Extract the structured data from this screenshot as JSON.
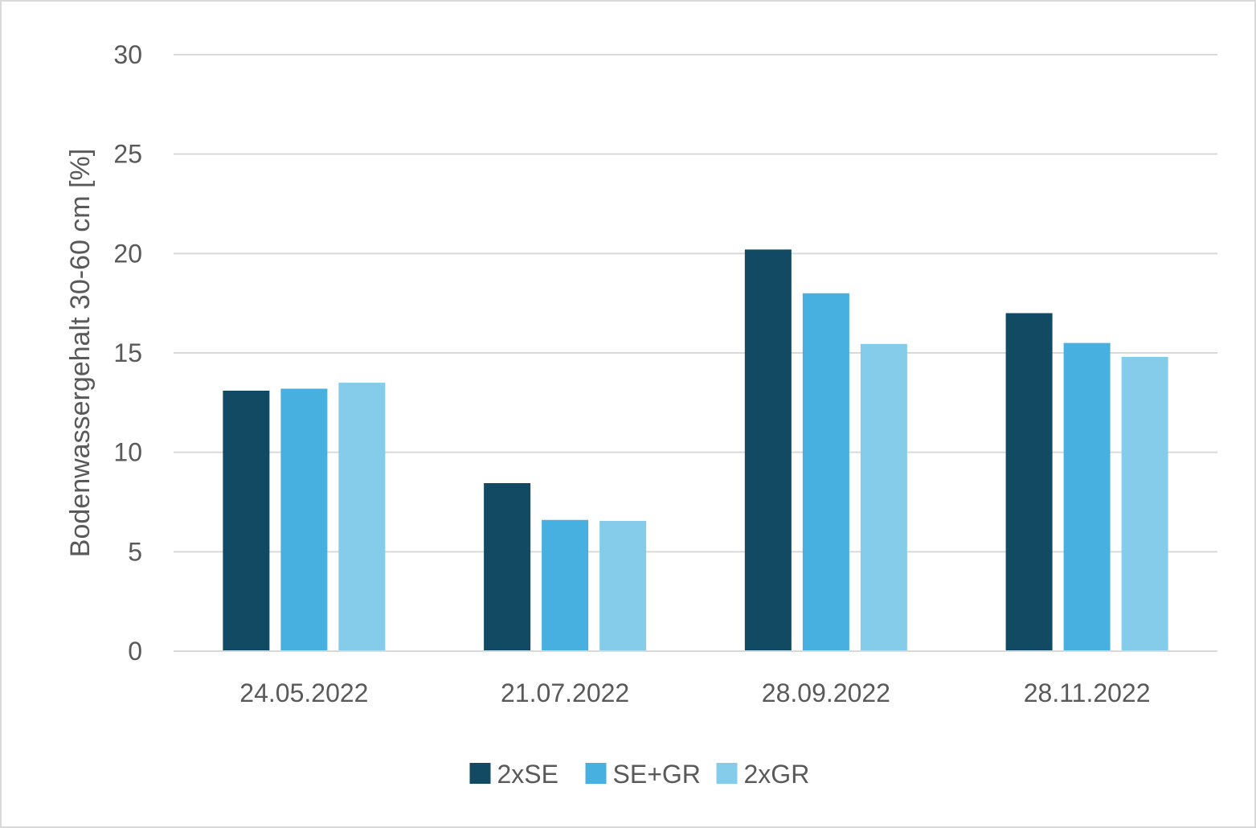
{
  "chart_data": {
    "type": "bar",
    "title": "",
    "xlabel": "",
    "ylabel": "Bodenwassergehalt 30-60 cm [%]",
    "ylim": [
      0,
      30
    ],
    "yticks": [
      0,
      5,
      10,
      15,
      20,
      25,
      30
    ],
    "grid": true,
    "legend_position": "bottom",
    "categories": [
      "24.05.2022",
      "21.07.2022",
      "28.09.2022",
      "28.11.2022"
    ],
    "series": [
      {
        "name": "2xSE",
        "color": "#124a63",
        "values": [
          13.1,
          8.45,
          20.2,
          17.0
        ]
      },
      {
        "name": "SE+GR",
        "color": "#48b0e0",
        "values": [
          13.2,
          6.6,
          18.0,
          15.5
        ]
      },
      {
        "name": "2xGR",
        "color": "#85cbea",
        "values": [
          13.5,
          6.55,
          15.45,
          14.8
        ]
      }
    ]
  }
}
